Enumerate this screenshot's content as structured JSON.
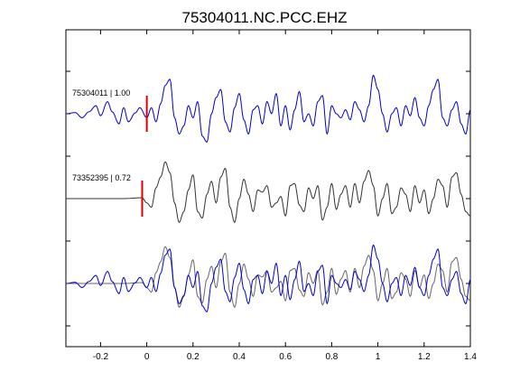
{
  "chart_data": {
    "type": "line",
    "title": "75304011.NC.PCC.EHZ",
    "xlabel": "",
    "ylabel": "",
    "xlim": [
      -0.35,
      1.4
    ],
    "xticks": [
      -0.2,
      0,
      0.2,
      0.4,
      0.6,
      0.8,
      1,
      1.2,
      1.4
    ],
    "xtick_labels": [
      "-0.2",
      "0",
      "0.2",
      "0.4",
      "0.6",
      "0.8",
      "1",
      "1.2",
      "1.4"
    ],
    "grid": false,
    "legend": "none",
    "traces": [
      {
        "label": "75304011 | 1.00",
        "event_id": "75304011",
        "coefficient": "1.00",
        "color": "#0000cc",
        "pick_time": 0.0,
        "pick_color": "#dd0000",
        "panel": "top"
      },
      {
        "label": "73352395 | 0.72",
        "event_id": "73352395",
        "coefficient": "0.72",
        "color": "#333333",
        "pick_time": -0.02,
        "pick_color": "#dd0000",
        "panel": "middle"
      }
    ],
    "overlay": {
      "panel": "bottom",
      "series_colors": [
        "#0000cc",
        "#666666"
      ]
    },
    "waveform_keypoints": {
      "top_blue": [
        [
          -0.35,
          0
        ],
        [
          -0.31,
          0.03
        ],
        [
          -0.28,
          -0.1
        ],
        [
          -0.25,
          0.05
        ],
        [
          -0.22,
          0.2
        ],
        [
          -0.2,
          -0.05
        ],
        [
          -0.17,
          0.3
        ],
        [
          -0.15,
          0.05
        ],
        [
          -0.12,
          -0.25
        ],
        [
          -0.1,
          0.15
        ],
        [
          -0.08,
          -0.2
        ],
        [
          -0.05,
          0.02
        ],
        [
          -0.03,
          0.15
        ],
        [
          0.0,
          -0.1
        ],
        [
          0.02,
          0.15
        ],
        [
          0.04,
          -0.2
        ],
        [
          0.06,
          0.25
        ],
        [
          0.08,
          0.7
        ],
        [
          0.1,
          0.85
        ],
        [
          0.12,
          -0.1
        ],
        [
          0.14,
          -0.5
        ],
        [
          0.16,
          -0.3
        ],
        [
          0.18,
          0.2
        ],
        [
          0.2,
          -0.1
        ],
        [
          0.22,
          0.3
        ],
        [
          0.24,
          -0.55
        ],
        [
          0.26,
          -0.7
        ],
        [
          0.28,
          0.0
        ],
        [
          0.3,
          0.4
        ],
        [
          0.32,
          0.6
        ],
        [
          0.34,
          -0.2
        ],
        [
          0.36,
          -0.45
        ],
        [
          0.38,
          0.15
        ],
        [
          0.4,
          0.5
        ],
        [
          0.42,
          -0.15
        ],
        [
          0.44,
          -0.5
        ],
        [
          0.46,
          0.1
        ],
        [
          0.48,
          0.2
        ],
        [
          0.5,
          -0.25
        ],
        [
          0.52,
          0.3
        ],
        [
          0.54,
          0.0
        ],
        [
          0.56,
          0.5
        ],
        [
          0.58,
          -0.3
        ],
        [
          0.6,
          0.2
        ],
        [
          0.62,
          -0.4
        ],
        [
          0.64,
          0.1
        ],
        [
          0.66,
          0.55
        ],
        [
          0.68,
          -0.2
        ],
        [
          0.7,
          0.0
        ],
        [
          0.72,
          -0.3
        ],
        [
          0.74,
          0.3
        ],
        [
          0.76,
          0.45
        ],
        [
          0.78,
          -0.5
        ],
        [
          0.8,
          0.2
        ],
        [
          0.82,
          0.0
        ],
        [
          0.84,
          -0.1
        ],
        [
          0.86,
          0.1
        ],
        [
          0.88,
          -0.15
        ],
        [
          0.9,
          0.3
        ],
        [
          0.92,
          0.1
        ],
        [
          0.94,
          -0.2
        ],
        [
          0.96,
          0.2
        ],
        [
          0.98,
          0.95
        ],
        [
          1.0,
          0.6
        ],
        [
          1.02,
          0.0
        ],
        [
          1.04,
          -0.45
        ],
        [
          1.06,
          0.0
        ],
        [
          1.08,
          0.15
        ],
        [
          1.1,
          -0.3
        ],
        [
          1.12,
          0.2
        ],
        [
          1.14,
          -0.05
        ],
        [
          1.16,
          0.4
        ],
        [
          1.18,
          -0.1
        ],
        [
          1.2,
          -0.3
        ],
        [
          1.22,
          0.2
        ],
        [
          1.24,
          0.6
        ],
        [
          1.26,
          0.85
        ],
        [
          1.28,
          -0.1
        ],
        [
          1.3,
          -0.3
        ],
        [
          1.32,
          0.1
        ],
        [
          1.34,
          0.3
        ],
        [
          1.36,
          -0.25
        ],
        [
          1.38,
          -0.5
        ],
        [
          1.4,
          0.1
        ]
      ],
      "middle_gray": [
        [
          -0.35,
          0
        ],
        [
          -0.1,
          0.0
        ],
        [
          -0.02,
          0.02
        ],
        [
          0.0,
          -0.1
        ],
        [
          0.02,
          -0.2
        ],
        [
          0.04,
          0.25
        ],
        [
          0.06,
          0.5
        ],
        [
          0.08,
          0.85
        ],
        [
          0.1,
          0.6
        ],
        [
          0.12,
          -0.1
        ],
        [
          0.14,
          -0.55
        ],
        [
          0.16,
          -0.3
        ],
        [
          0.18,
          0.2
        ],
        [
          0.2,
          0.55
        ],
        [
          0.22,
          -0.3
        ],
        [
          0.24,
          -0.45
        ],
        [
          0.26,
          0.1
        ],
        [
          0.28,
          0.4
        ],
        [
          0.3,
          -0.1
        ],
        [
          0.32,
          0.5
        ],
        [
          0.34,
          0.7
        ],
        [
          0.36,
          -0.2
        ],
        [
          0.38,
          -0.55
        ],
        [
          0.4,
          0.0
        ],
        [
          0.42,
          0.45
        ],
        [
          0.44,
          0.1
        ],
        [
          0.46,
          -0.3
        ],
        [
          0.48,
          0.2
        ],
        [
          0.5,
          0.15
        ],
        [
          0.52,
          0.3
        ],
        [
          0.54,
          -0.2
        ],
        [
          0.56,
          -0.1
        ],
        [
          0.58,
          0.05
        ],
        [
          0.6,
          -0.4
        ],
        [
          0.62,
          0.3
        ],
        [
          0.64,
          0.35
        ],
        [
          0.66,
          -0.15
        ],
        [
          0.68,
          -0.3
        ],
        [
          0.7,
          0.25
        ],
        [
          0.72,
          0.0
        ],
        [
          0.74,
          0.3
        ],
        [
          0.76,
          -0.5
        ],
        [
          0.78,
          -0.2
        ],
        [
          0.8,
          0.35
        ],
        [
          0.82,
          -0.25
        ],
        [
          0.84,
          0.1
        ],
        [
          0.86,
          0.3
        ],
        [
          0.88,
          -0.2
        ],
        [
          0.9,
          0.35
        ],
        [
          0.92,
          -0.1
        ],
        [
          0.94,
          0.4
        ],
        [
          0.96,
          0.65
        ],
        [
          0.98,
          0.3
        ],
        [
          1.0,
          -0.4
        ],
        [
          1.02,
          0.0
        ],
        [
          1.04,
          0.35
        ],
        [
          1.06,
          -0.35
        ],
        [
          1.08,
          -0.2
        ],
        [
          1.1,
          0.25
        ],
        [
          1.12,
          0.1
        ],
        [
          1.14,
          -0.3
        ],
        [
          1.16,
          0.3
        ],
        [
          1.18,
          -0.1
        ],
        [
          1.2,
          0.2
        ],
        [
          1.22,
          -0.35
        ],
        [
          1.24,
          0.0
        ],
        [
          1.26,
          0.45
        ],
        [
          1.28,
          0.3
        ],
        [
          1.3,
          -0.2
        ],
        [
          1.32,
          0.5
        ],
        [
          1.34,
          0.6
        ],
        [
          1.36,
          0.1
        ],
        [
          1.38,
          -0.3
        ],
        [
          1.4,
          -0.4
        ]
      ]
    }
  }
}
